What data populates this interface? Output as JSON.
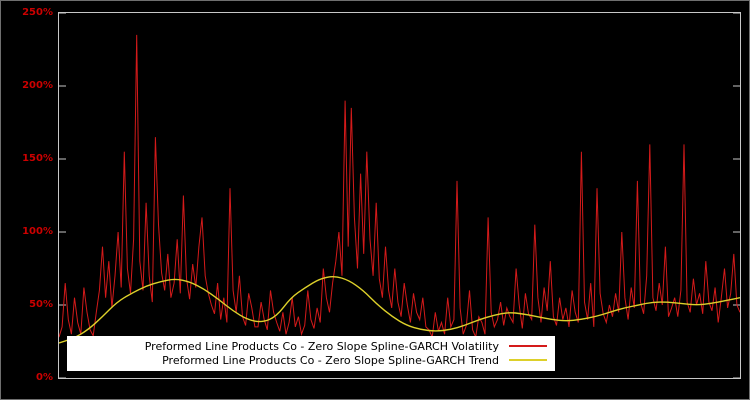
{
  "page": {
    "background": "#000000",
    "frame_color": "#c8c8c8"
  },
  "axis": {
    "label_color": "#cc0000",
    "yticks": [
      {
        "label": "0%",
        "value": 0
      },
      {
        "label": "50%",
        "value": 50
      },
      {
        "label": "100%",
        "value": 100
      },
      {
        "label": "150%",
        "value": 150
      },
      {
        "label": "200%",
        "value": 200
      },
      {
        "label": "250%",
        "value": 250
      }
    ],
    "xticks": []
  },
  "legend": {
    "background": "#ffffff",
    "text_color": "#000000",
    "entries": [
      {
        "label": "Preformed Line Products Co - Zero Slope Spline-GARCH Volatility",
        "color": "#d41a1a"
      },
      {
        "label": "Preformed Line Products Co - Zero Slope Spline-GARCH Trend",
        "color": "#ddd02a"
      }
    ]
  },
  "chart_data": {
    "type": "line",
    "title": "",
    "xlabel": "",
    "ylabel": "",
    "y_unit": "%",
    "ylim": [
      0,
      250
    ],
    "x_range": [
      0,
      1
    ],
    "grid": false,
    "legend_position": "bottom-center",
    "series": [
      {
        "name": "Preformed Line Products Co - Zero Slope Spline-GARCH Volatility",
        "color": "#d41a1a",
        "line_width": 1,
        "style": "spiky",
        "values": [
          28,
          35,
          65,
          40,
          30,
          55,
          38,
          30,
          62,
          45,
          33,
          29,
          45,
          60,
          90,
          55,
          80,
          48,
          70,
          100,
          62,
          155,
          75,
          58,
          95,
          235,
          80,
          60,
          120,
          70,
          52,
          165,
          105,
          72,
          60,
          85,
          55,
          65,
          95,
          58,
          125,
          68,
          54,
          78,
          62,
          90,
          110,
          70,
          58,
          50,
          44,
          65,
          40,
          55,
          38,
          130,
          60,
          45,
          70,
          42,
          36,
          58,
          48,
          35,
          35,
          52,
          40,
          33,
          60,
          45,
          38,
          32,
          45,
          30,
          38,
          55,
          35,
          42,
          30,
          36,
          60,
          40,
          34,
          48,
          38,
          75,
          55,
          45,
          65,
          80,
          100,
          70,
          190,
          90,
          185,
          110,
          75,
          140,
          85,
          155,
          95,
          70,
          120,
          68,
          55,
          90,
          60,
          48,
          75,
          52,
          42,
          65,
          50,
          38,
          58,
          45,
          40,
          55,
          35,
          33,
          28,
          45,
          32,
          38,
          30,
          55,
          35,
          40,
          135,
          48,
          30,
          36,
          60,
          33,
          28,
          42,
          38,
          30,
          110,
          45,
          35,
          40,
          52,
          36,
          48,
          42,
          38,
          75,
          50,
          34,
          58,
          44,
          40,
          105,
          55,
          38,
          62,
          46,
          80,
          42,
          36,
          55,
          40,
          48,
          35,
          60,
          45,
          38,
          155,
          52,
          40,
          65,
          35,
          130,
          58,
          44,
          38,
          50,
          42,
          58,
          45,
          100,
          55,
          40,
          62,
          48,
          135,
          52,
          44,
          70,
          160,
          55,
          46,
          65,
          50,
          90,
          42,
          48,
          55,
          42,
          60,
          160,
          52,
          45,
          68,
          50,
          58,
          44,
          80,
          52,
          46,
          62,
          38,
          55,
          75,
          48,
          58,
          85,
          50,
          45
        ]
      },
      {
        "name": "Preformed Line Products Co - Zero Slope Spline-GARCH Trend",
        "color": "#ddd02a",
        "line_width": 1.4,
        "style": "smooth",
        "values": [
          24,
          27,
          33,
          42,
          52,
          58,
          63,
          66,
          68,
          66,
          61,
          54,
          46,
          40,
          38,
          42,
          55,
          62,
          68,
          70,
          67,
          60,
          50,
          42,
          36,
          33,
          32,
          33,
          36,
          40,
          43,
          45,
          44,
          42,
          40,
          39,
          40,
          42,
          45,
          48,
          50,
          52,
          52,
          51,
          50,
          51,
          53,
          55
        ]
      }
    ]
  }
}
